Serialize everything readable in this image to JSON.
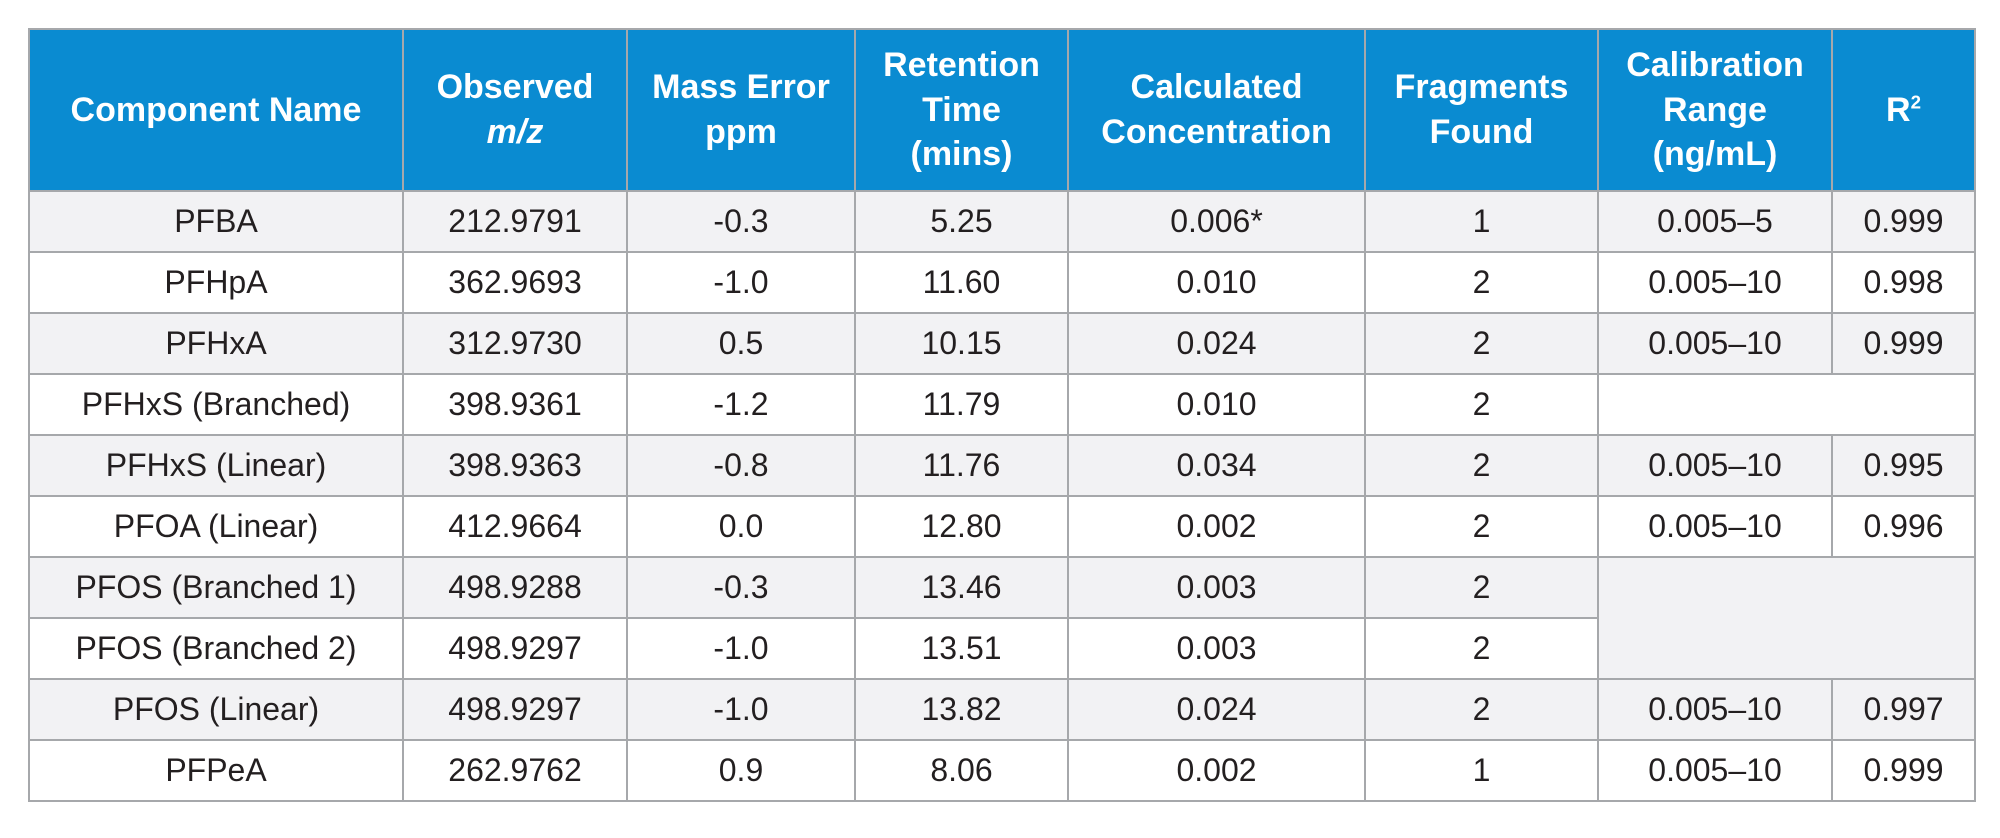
{
  "table": {
    "headers": {
      "component_name": "Component Name",
      "observed": "Observed",
      "observed_mz": "m/z",
      "mass_error_1": "Mass Error",
      "mass_error_2": "ppm",
      "retention_1": "Retention",
      "retention_2": "Time",
      "retention_3": "(mins)",
      "calculated_1": "Calculated",
      "calculated_2": "Concentration",
      "fragments_1": "Fragments",
      "fragments_2": "Found",
      "calibration_1": "Calibration",
      "calibration_2": "Range",
      "calibration_3": "(ng/mL)",
      "r_squared_base": "R",
      "r_squared_exp": "2"
    },
    "rows": [
      {
        "name": "PFBA",
        "mz": "212.9791",
        "ppm": "-0.3",
        "rt": "5.25",
        "conc": "0.006*",
        "frag": "1",
        "range": "0.005–5",
        "r2": "0.999"
      },
      {
        "name": "PFHpA",
        "mz": "362.9693",
        "ppm": "-1.0",
        "rt": "11.60",
        "conc": "0.010",
        "frag": "2",
        "range": "0.005–10",
        "r2": "0.998"
      },
      {
        "name": "PFHxA",
        "mz": "312.9730",
        "ppm": "0.5",
        "rt": "10.15",
        "conc": "0.024",
        "frag": "2",
        "range": "0.005–10",
        "r2": "0.999"
      },
      {
        "name": "PFHxS (Branched)",
        "mz": "398.9361",
        "ppm": "-1.2",
        "rt": "11.79",
        "conc": "0.010",
        "frag": "2"
      },
      {
        "name": "PFHxS (Linear)",
        "mz": "398.9363",
        "ppm": "-0.8",
        "rt": "11.76",
        "conc": "0.034",
        "frag": "2",
        "range": "0.005–10",
        "r2": "0.995"
      },
      {
        "name": "PFOA (Linear)",
        "mz": "412.9664",
        "ppm": "0.0",
        "rt": "12.80",
        "conc": "0.002",
        "frag": "2",
        "range": "0.005–10",
        "r2": "0.996"
      },
      {
        "name": "PFOS (Branched 1)",
        "mz": "498.9288",
        "ppm": "-0.3",
        "rt": "13.46",
        "conc": "0.003",
        "frag": "2"
      },
      {
        "name": "PFOS (Branched 2)",
        "mz": "498.9297",
        "ppm": "-1.0",
        "rt": "13.51",
        "conc": "0.003",
        "frag": "2"
      },
      {
        "name": "PFOS (Linear)",
        "mz": "498.9297",
        "ppm": "-1.0",
        "rt": "13.82",
        "conc": "0.024",
        "frag": "2",
        "range": "0.005–10",
        "r2": "0.997"
      },
      {
        "name": "PFPeA",
        "mz": "262.9762",
        "ppm": "0.9",
        "rt": "8.06",
        "conc": "0.002",
        "frag": "1",
        "range": "0.005–10",
        "r2": "0.999"
      }
    ]
  },
  "colors": {
    "header_bg": "#0a8bd1",
    "header_text": "#ffffff",
    "shaded_row": "#f2f2f4",
    "border": "#a6a8ab"
  }
}
